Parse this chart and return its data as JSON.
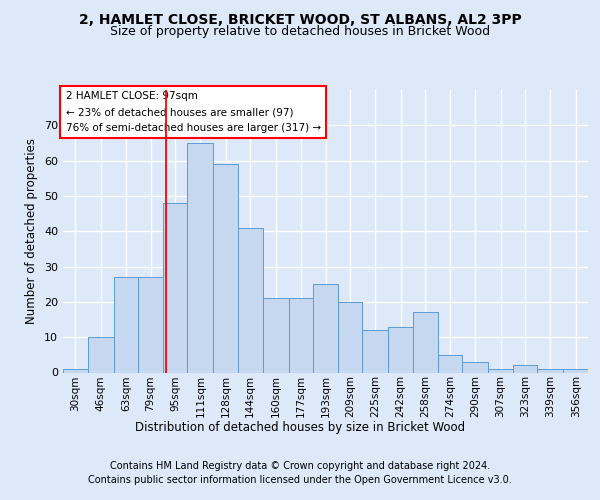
{
  "title": "2, HAMLET CLOSE, BRICKET WOOD, ST ALBANS, AL2 3PP",
  "subtitle": "Size of property relative to detached houses in Bricket Wood",
  "xlabel": "Distribution of detached houses by size in Bricket Wood",
  "ylabel": "Number of detached properties",
  "footer_line1": "Contains HM Land Registry data © Crown copyright and database right 2024.",
  "footer_line2": "Contains public sector information licensed under the Open Government Licence v3.0.",
  "annotation_title": "2 HAMLET CLOSE: 97sqm",
  "annotation_line2": "← 23% of detached houses are smaller (97)",
  "annotation_line3": "76% of semi-detached houses are larger (317) →",
  "property_size": 97,
  "bar_labels": [
    "30sqm",
    "46sqm",
    "63sqm",
    "79sqm",
    "95sqm",
    "111sqm",
    "128sqm",
    "144sqm",
    "160sqm",
    "177sqm",
    "193sqm",
    "209sqm",
    "225sqm",
    "242sqm",
    "258sqm",
    "274sqm",
    "290sqm",
    "307sqm",
    "323sqm",
    "339sqm",
    "356sqm"
  ],
  "bar_values": [
    1,
    10,
    27,
    27,
    48,
    65,
    59,
    41,
    21,
    21,
    25,
    20,
    12,
    13,
    17,
    5,
    3,
    1,
    2,
    1,
    1
  ],
  "bar_left_edges": [
    30,
    46,
    63,
    79,
    95,
    111,
    128,
    144,
    160,
    177,
    193,
    209,
    225,
    242,
    258,
    274,
    290,
    307,
    323,
    339,
    356
  ],
  "bar_widths": [
    16,
    17,
    16,
    16,
    16,
    17,
    16,
    16,
    17,
    16,
    16,
    16,
    17,
    16,
    16,
    16,
    17,
    16,
    16,
    17,
    16
  ],
  "bar_color": "#c5d8f0",
  "bar_edgecolor": "#5b9bd5",
  "redline_x": 97,
  "ylim": [
    0,
    80
  ],
  "yticks": [
    0,
    10,
    20,
    30,
    40,
    50,
    60,
    70
  ],
  "background_color": "#dde8f8",
  "axes_bg_color": "#dde8f8",
  "grid_color": "#ffffff",
  "title_fontsize": 10,
  "subtitle_fontsize": 9,
  "annotation_box_edgecolor": "red",
  "annotation_box_facecolor": "white"
}
